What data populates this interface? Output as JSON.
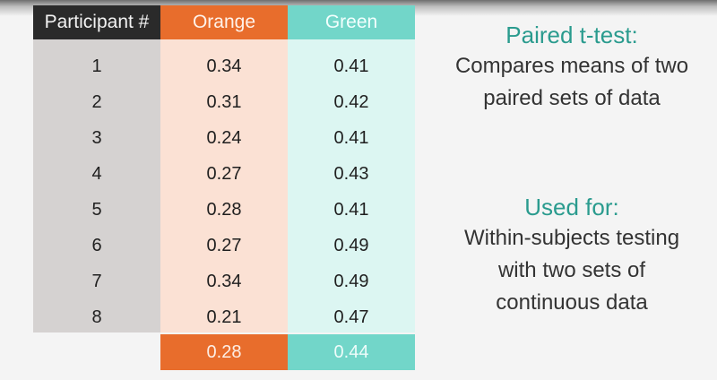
{
  "table": {
    "headers": [
      "Participant #",
      "Orange",
      "Green"
    ],
    "rows": [
      [
        "1",
        "0.34",
        "0.41"
      ],
      [
        "2",
        "0.31",
        "0.42"
      ],
      [
        "3",
        "0.24",
        "0.41"
      ],
      [
        "4",
        "0.27",
        "0.43"
      ],
      [
        "5",
        "0.28",
        "0.41"
      ],
      [
        "6",
        "0.27",
        "0.49"
      ],
      [
        "7",
        "0.34",
        "0.49"
      ],
      [
        "8",
        "0.21",
        "0.47"
      ]
    ],
    "means": {
      "orange": "0.28",
      "green": "0.44"
    }
  },
  "paired_ttest": {
    "heading": "Paired t-test:",
    "lines": [
      "Compares means of two",
      "paired sets of data"
    ]
  },
  "used_for": {
    "heading": "Used for:",
    "lines": [
      "Within-subjects testing",
      "with two sets of",
      "continuous data"
    ]
  },
  "colors": {
    "orange": "#e86d2c",
    "orange_light": "#fbe1d4",
    "green": "#72d6c9",
    "green_light": "#dcf6f2",
    "gray_header": "#2a2a2a",
    "gray_body": "#d5d2d1",
    "heading_teal": "#2a9b8e"
  }
}
